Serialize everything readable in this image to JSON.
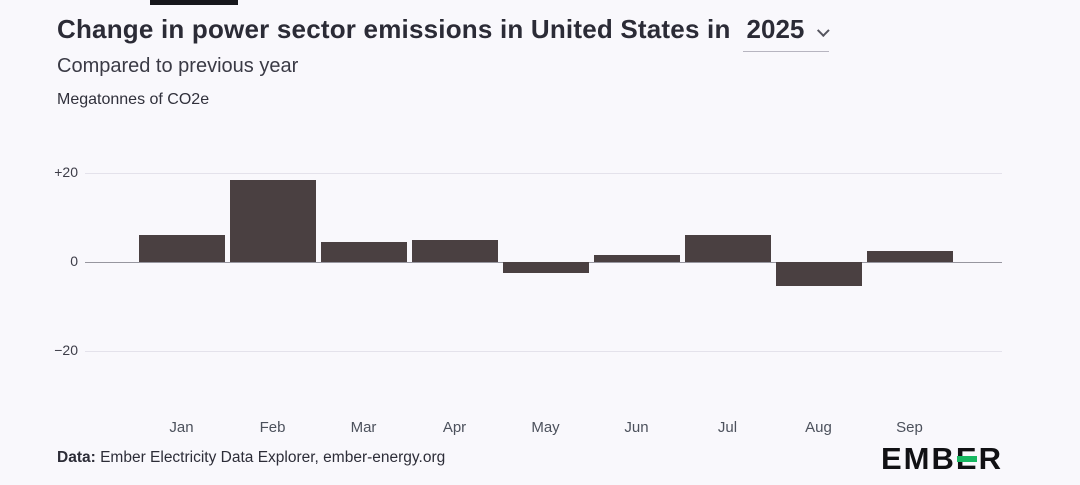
{
  "page": {
    "title": "Change in power sector emissions in United States in",
    "year": "2025",
    "subtitle": "Compared to previous year",
    "unit_label": "Megatonnes of CO2e",
    "footer_prefix": "Data:",
    "footer_text": " Ember Electricity Data Explorer, ember-energy.org",
    "logo_pre": "EMB",
    "logo_e": "E",
    "logo_post": "R"
  },
  "chart_data": {
    "type": "bar",
    "title": "Change in power sector emissions in United States in 2025",
    "subtitle": "Compared to previous year",
    "ylabel": "Megatonnes of CO2e",
    "xlabel": "",
    "categories": [
      "Jan",
      "Feb",
      "Mar",
      "Apr",
      "May",
      "Jun",
      "Jul",
      "Aug",
      "Sep"
    ],
    "values": [
      6,
      18.5,
      4.5,
      5,
      -2.5,
      1.5,
      6,
      -5.5,
      2.5
    ],
    "bar_color": "#4a4041",
    "ylim": [
      -25,
      25
    ],
    "yticks": [
      {
        "label": "+20",
        "value": 20
      },
      {
        "label": "0",
        "value": 0
      },
      {
        "label": "−20",
        "value": -20
      }
    ],
    "grid": true,
    "legend": false
  }
}
